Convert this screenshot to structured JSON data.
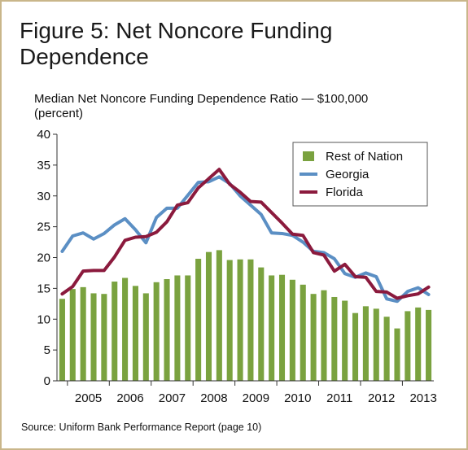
{
  "figure": {
    "title": "Figure 5: Net Noncore Funding Dependence",
    "source": "Source: Uniform Bank Performance Report (page 10)"
  },
  "chart_data": {
    "type": "bar+line",
    "title": "Median Net Noncore Funding Dependence Ratio — $100,000",
    "ylabel": "(percent)",
    "xlabel": "",
    "ylim": [
      0,
      40
    ],
    "yticks": [
      0,
      5,
      10,
      15,
      20,
      25,
      30,
      35,
      40
    ],
    "x_tick_labels": [
      "2005",
      "2006",
      "2007",
      "2008",
      "2009",
      "2010",
      "2011",
      "2012",
      "2013"
    ],
    "grid": false,
    "legend_position": "top-right",
    "periods": [
      "2004 Q4",
      "2005 Q1",
      "2005 Q2",
      "2005 Q3",
      "2005 Q4",
      "2006 Q1",
      "2006 Q2",
      "2006 Q3",
      "2006 Q4",
      "2007 Q1",
      "2007 Q2",
      "2007 Q3",
      "2007 Q4",
      "2008 Q1",
      "2008 Q2",
      "2008 Q3",
      "2008 Q4",
      "2009 Q1",
      "2009 Q2",
      "2009 Q3",
      "2009 Q4",
      "2010 Q1",
      "2010 Q2",
      "2010 Q3",
      "2010 Q4",
      "2011 Q1",
      "2011 Q2",
      "2011 Q3",
      "2011 Q4",
      "2012 Q1",
      "2012 Q2",
      "2012 Q3",
      "2012 Q4",
      "2013 Q1",
      "2013 Q2",
      "2013 Q3"
    ],
    "series": [
      {
        "name": "Rest of Nation",
        "kind": "bar",
        "color": "#7aa23f",
        "values": [
          13.3,
          14.9,
          15.2,
          14.2,
          14.1,
          16.1,
          16.7,
          15.4,
          14.2,
          16.0,
          16.5,
          17.1,
          17.1,
          19.8,
          20.9,
          21.2,
          19.6,
          19.7,
          19.7,
          18.4,
          17.1,
          17.2,
          16.4,
          15.6,
          14.1,
          14.7,
          13.6,
          13.0,
          11.0,
          12.1,
          11.7,
          10.4,
          8.5,
          11.3,
          11.9,
          11.5
        ]
      },
      {
        "name": "Georgia",
        "kind": "line",
        "color": "#5b8fc4",
        "values": [
          21.0,
          23.5,
          24.0,
          23.0,
          23.9,
          25.3,
          26.3,
          24.5,
          22.4,
          26.5,
          28.0,
          28.0,
          30.1,
          32.2,
          32.3,
          33.1,
          32.0,
          30.0,
          28.5,
          27.0,
          24.0,
          23.9,
          23.6,
          22.5,
          21.0,
          20.8,
          19.8,
          17.4,
          16.8,
          17.5,
          16.9,
          13.3,
          12.9,
          14.5,
          15.1,
          14.0
        ]
      },
      {
        "name": "Florida",
        "kind": "line",
        "color": "#8b1a3d",
        "values": [
          14.1,
          15.3,
          17.8,
          17.9,
          17.9,
          20.1,
          22.8,
          23.3,
          23.4,
          24.1,
          25.8,
          28.5,
          28.9,
          31.3,
          32.8,
          34.3,
          31.9,
          30.6,
          29.1,
          29.0,
          27.3,
          25.6,
          23.8,
          23.6,
          20.8,
          20.4,
          17.8,
          18.9,
          16.9,
          16.8,
          14.5,
          14.4,
          13.4,
          13.8,
          14.1,
          15.2
        ]
      }
    ]
  }
}
